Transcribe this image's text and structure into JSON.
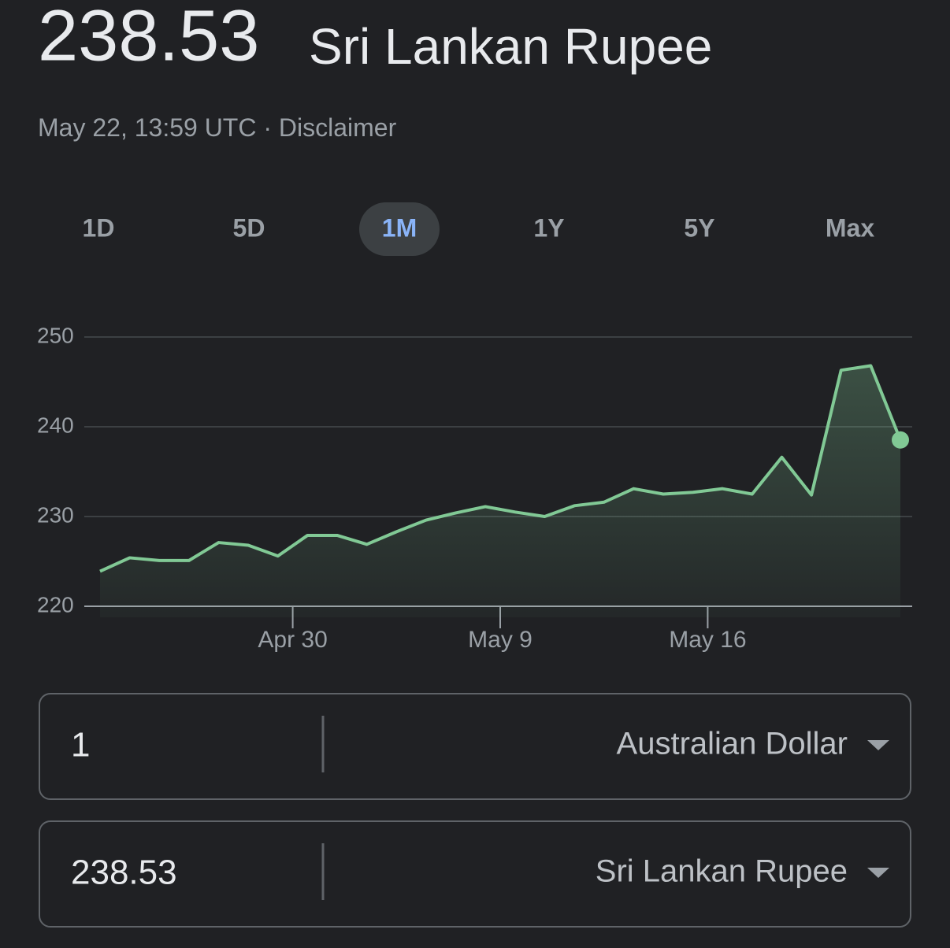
{
  "header": {
    "rate": "238.53",
    "currency": "Sri Lankan Rupee",
    "timestamp": "May 22, 13:59 UTC",
    "separator": "·",
    "disclaimer": "Disclaimer"
  },
  "ranges": {
    "items": [
      "1D",
      "5D",
      "1M",
      "1Y",
      "5Y",
      "Max"
    ],
    "active": 2
  },
  "chart_data": {
    "type": "line",
    "x": [
      0,
      1,
      2,
      3,
      4,
      5,
      6,
      7,
      8,
      9,
      10,
      11,
      12,
      13,
      14,
      15,
      16,
      17,
      18,
      19,
      20,
      21,
      22,
      23,
      24,
      25,
      26,
      27
    ],
    "series": [
      {
        "color": "#81c995",
        "values": [
          223.9,
          225.4,
          225.1,
          225.1,
          227.1,
          226.8,
          225.6,
          227.9,
          227.9,
          226.9,
          228.3,
          229.6,
          230.4,
          231.1,
          230.5,
          230.0,
          231.2,
          231.6,
          233.1,
          232.5,
          232.7,
          233.1,
          232.5,
          236.6,
          232.4,
          246.3,
          246.8,
          238.53
        ]
      }
    ],
    "xlim": [
      0,
      27
    ],
    "xticks": [
      {
        "value": 6.5,
        "label": "Apr 30"
      },
      {
        "value": 13.5,
        "label": "May 9"
      },
      {
        "value": 20.5,
        "label": "May 16"
      }
    ],
    "ylim": [
      220,
      250
    ],
    "yticks": [
      220,
      230,
      240,
      250
    ],
    "grid": true
  },
  "converter": [
    {
      "amount": "1",
      "currency": "Australian Dollar"
    },
    {
      "amount": "238.53",
      "currency": "Sri Lankan Rupee"
    }
  ]
}
